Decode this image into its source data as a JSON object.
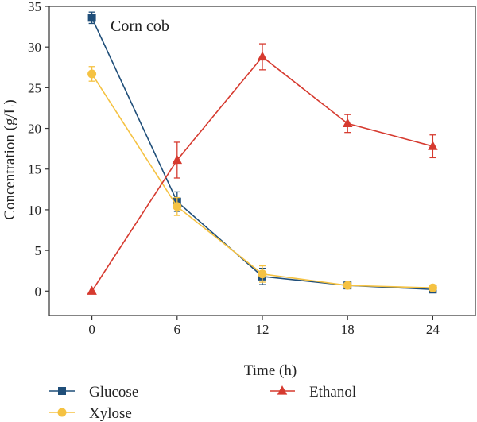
{
  "chart_data": {
    "type": "line",
    "annotation": "Corn cob",
    "xlabel": "Time (h)",
    "ylabel": "Concentration (g/L)",
    "x": [
      0,
      6,
      12,
      18,
      24
    ],
    "xticks": [
      "0",
      "6",
      "12",
      "18",
      "24"
    ],
    "yticks": [
      "0",
      "5",
      "10",
      "15",
      "20",
      "25",
      "30",
      "35"
    ],
    "xlim": [
      -3,
      27
    ],
    "ylim": [
      -3,
      35
    ],
    "grid": false,
    "legend_position": "bottom",
    "series": [
      {
        "name": "Glucose",
        "marker": "square",
        "color": "#1f4e79",
        "values": [
          33.6,
          11.0,
          1.8,
          0.7,
          0.2
        ],
        "errors": [
          0.7,
          1.2,
          1.0,
          0.3,
          0.3
        ]
      },
      {
        "name": "Xylose",
        "marker": "circle",
        "color": "#f5c242",
        "values": [
          26.7,
          10.4,
          2.1,
          0.7,
          0.4
        ],
        "errors": [
          0.9,
          1.1,
          1.0,
          0.3,
          0.2
        ]
      },
      {
        "name": "Ethanol",
        "marker": "triangle",
        "color": "#d63a2f",
        "values": [
          0.0,
          16.1,
          28.8,
          20.6,
          17.8
        ],
        "errors": [
          0.0,
          2.2,
          1.6,
          1.1,
          1.4
        ]
      }
    ]
  }
}
